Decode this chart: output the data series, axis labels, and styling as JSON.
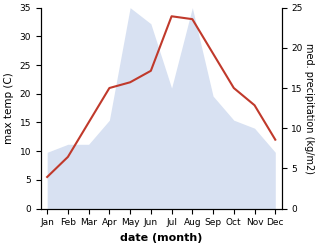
{
  "months": [
    "Jan",
    "Feb",
    "Mar",
    "Apr",
    "May",
    "Jun",
    "Jul",
    "Aug",
    "Sep",
    "Oct",
    "Nov",
    "Dec"
  ],
  "temperature": [
    5.5,
    9.0,
    15.0,
    21.0,
    22.0,
    24.0,
    33.5,
    33.0,
    27.0,
    21.0,
    18.0,
    12.0
  ],
  "precipitation": [
    7.0,
    8.0,
    8.0,
    11.0,
    25.0,
    23.0,
    15.0,
    25.0,
    14.0,
    11.0,
    10.0,
    7.0
  ],
  "temp_color": "#c0392b",
  "precip_color": "#b8c9e8",
  "temp_ylim": [
    0,
    35
  ],
  "precip_ylim": [
    0,
    25
  ],
  "temp_yticks": [
    0,
    5,
    10,
    15,
    20,
    25,
    30,
    35
  ],
  "precip_yticks": [
    0,
    5,
    10,
    15,
    20,
    25
  ],
  "xlabel": "date (month)",
  "ylabel_left": "max temp (C)",
  "ylabel_right": "med. precipitation (kg/m2)",
  "background_color": "#ffffff",
  "label_fontsize": 7.5,
  "tick_fontsize": 6.5,
  "xlabel_fontsize": 8,
  "linewidth": 1.5
}
